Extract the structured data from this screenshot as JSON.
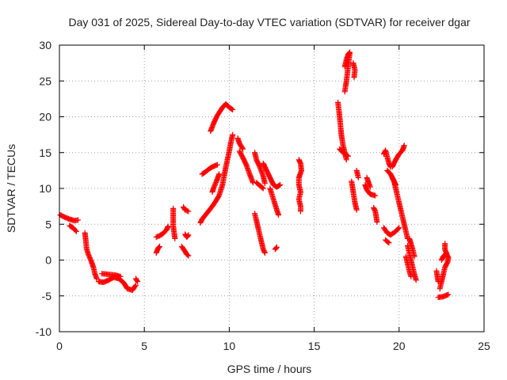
{
  "chart_data": {
    "type": "scatter",
    "title": "Day 031 of 2025, Sidereal Day-to-day VTEC variation (SDTVAR) for receiver dgar",
    "xlabel": "GPS time / hours",
    "ylabel": "SDTVAR / TECUs",
    "xlim": [
      0,
      25
    ],
    "ylim": [
      -10,
      30
    ],
    "xticks": [
      0,
      5,
      10,
      15,
      20,
      25
    ],
    "yticks": [
      -10,
      -5,
      0,
      5,
      10,
      15,
      20,
      25,
      30
    ],
    "grid": true,
    "marker": "+",
    "color": "#ff0000",
    "segments": [
      [
        [
          0.05,
          6.3
        ],
        [
          0.3,
          6.0
        ],
        [
          0.6,
          5.7
        ],
        [
          0.9,
          5.5
        ],
        [
          1.1,
          5.6
        ]
      ],
      [
        [
          0.6,
          4.8
        ],
        [
          0.8,
          4.5
        ],
        [
          1.0,
          4.0
        ]
      ],
      [
        [
          1.5,
          3.8
        ],
        [
          1.55,
          2.8
        ],
        [
          1.6,
          1.6
        ],
        [
          1.7,
          0.8
        ],
        [
          1.85,
          0.0
        ],
        [
          2.0,
          -1.0
        ],
        [
          2.1,
          -2.0
        ],
        [
          2.2,
          -2.6
        ]
      ],
      [
        [
          2.3,
          -3.0
        ],
        [
          2.6,
          -3.1
        ],
        [
          2.9,
          -2.8
        ],
        [
          3.2,
          -2.4
        ],
        [
          3.5,
          -2.6
        ],
        [
          3.8,
          -3.2
        ],
        [
          4.0,
          -4.0
        ],
        [
          4.3,
          -4.2
        ],
        [
          4.5,
          -3.5
        ]
      ],
      [
        [
          2.5,
          -1.9
        ],
        [
          2.9,
          -2.0
        ],
        [
          3.3,
          -2.1
        ],
        [
          3.6,
          -2.3
        ]
      ],
      [
        [
          4.5,
          -2.6
        ],
        [
          4.6,
          -3.0
        ]
      ],
      [
        [
          5.7,
          1.0
        ],
        [
          5.8,
          1.6
        ],
        [
          5.9,
          1.9
        ]
      ],
      [
        [
          5.7,
          3.2
        ],
        [
          5.9,
          3.4
        ],
        [
          6.1,
          3.7
        ],
        [
          6.3,
          4.2
        ],
        [
          6.4,
          4.7
        ]
      ],
      [
        [
          6.7,
          7.2
        ],
        [
          6.7,
          4.8
        ],
        [
          6.8,
          3.0
        ]
      ],
      [
        [
          7.3,
          7.4
        ],
        [
          7.4,
          7.0
        ],
        [
          7.6,
          6.8
        ]
      ],
      [
        [
          7.4,
          3.6
        ],
        [
          7.5,
          3.2
        ],
        [
          7.6,
          3.5
        ]
      ],
      [
        [
          7.2,
          1.9
        ],
        [
          7.4,
          1.2
        ],
        [
          7.5,
          0.8
        ],
        [
          7.6,
          0.6
        ]
      ],
      [
        [
          8.3,
          5.2
        ],
        [
          8.4,
          5.7
        ],
        [
          8.6,
          6.3
        ],
        [
          8.8,
          6.9
        ],
        [
          9.0,
          7.5
        ],
        [
          9.2,
          8.2
        ],
        [
          9.4,
          9.0
        ],
        [
          9.6,
          10.5
        ],
        [
          9.8,
          13.0
        ],
        [
          10.0,
          15.2
        ],
        [
          10.1,
          16.5
        ],
        [
          10.2,
          17.5
        ]
      ],
      [
        [
          8.4,
          12.0
        ],
        [
          8.6,
          12.3
        ],
        [
          8.8,
          12.7
        ],
        [
          9.0,
          13.0
        ],
        [
          9.3,
          13.3
        ]
      ],
      [
        [
          9.0,
          9.5
        ],
        [
          9.1,
          10.2
        ],
        [
          9.25,
          11.0
        ],
        [
          9.4,
          12.0
        ]
      ],
      [
        [
          8.9,
          18.0
        ],
        [
          9.1,
          19.2
        ],
        [
          9.3,
          20.2
        ],
        [
          9.6,
          21.3
        ],
        [
          9.8,
          21.8
        ],
        [
          10.0,
          21.3
        ],
        [
          10.2,
          21.0
        ]
      ],
      [
        [
          10.5,
          17.0
        ],
        [
          10.6,
          16.3
        ],
        [
          10.8,
          15.5
        ]
      ],
      [
        [
          10.6,
          15.2
        ],
        [
          10.8,
          14.3
        ],
        [
          11.0,
          13.3
        ],
        [
          11.2,
          12.0
        ],
        [
          11.4,
          10.8
        ]
      ],
      [
        [
          11.5,
          15.0
        ],
        [
          11.6,
          14.0
        ],
        [
          11.8,
          13.0
        ],
        [
          12.0,
          11.7
        ],
        [
          12.1,
          10.7
        ]
      ],
      [
        [
          11.6,
          10.8
        ],
        [
          11.8,
          10.4
        ],
        [
          12.0,
          10.0
        ]
      ],
      [
        [
          12.0,
          13.5
        ],
        [
          12.2,
          12.5
        ],
        [
          12.4,
          11.5
        ],
        [
          12.6,
          10.5
        ],
        [
          12.8,
          10.2
        ],
        [
          13.0,
          10.5
        ]
      ],
      [
        [
          12.4,
          10.0
        ],
        [
          12.6,
          8.5
        ],
        [
          12.8,
          7.0
        ],
        [
          12.9,
          6.3
        ]
      ],
      [
        [
          11.5,
          6.5
        ],
        [
          11.6,
          5.5
        ],
        [
          11.7,
          4.5
        ],
        [
          11.8,
          3.5
        ],
        [
          11.9,
          2.5
        ],
        [
          12.0,
          1.5
        ],
        [
          12.1,
          1.0
        ]
      ],
      [
        [
          12.7,
          1.5
        ],
        [
          12.8,
          1.8
        ]
      ],
      [
        [
          14.1,
          14.0
        ],
        [
          14.2,
          13.5
        ],
        [
          14.25,
          12.5
        ],
        [
          14.1,
          11.5
        ],
        [
          14.1,
          10.5
        ],
        [
          14.2,
          9.5
        ],
        [
          14.1,
          8.5
        ],
        [
          14.2,
          7.5
        ],
        [
          14.2,
          6.8
        ]
      ],
      [
        [
          16.4,
          22.0
        ],
        [
          16.5,
          20.0
        ],
        [
          16.6,
          17.5
        ],
        [
          16.7,
          16.0
        ],
        [
          16.8,
          15.0
        ],
        [
          16.9,
          14.0
        ]
      ],
      [
        [
          16.5,
          15.5
        ],
        [
          16.7,
          15.0
        ],
        [
          17.0,
          14.5
        ]
      ],
      [
        [
          16.8,
          27.0
        ],
        [
          16.9,
          28.0
        ],
        [
          17.0,
          28.7
        ],
        [
          17.1,
          29.0
        ],
        [
          16.9,
          25.0
        ],
        [
          16.8,
          23.5
        ]
      ],
      [
        [
          17.3,
          27.5
        ],
        [
          17.4,
          26.5
        ],
        [
          17.35,
          25.5
        ]
      ],
      [
        [
          17.5,
          12.5
        ],
        [
          17.6,
          11.5
        ]
      ],
      [
        [
          17.2,
          11.0
        ],
        [
          17.3,
          9.5
        ],
        [
          17.4,
          8.0
        ],
        [
          17.5,
          7.0
        ]
      ],
      [
        [
          18.0,
          10.5
        ],
        [
          18.1,
          9.8
        ],
        [
          18.3,
          9.2
        ],
        [
          18.6,
          9.0
        ]
      ],
      [
        [
          18.1,
          11.5
        ],
        [
          18.2,
          10.8
        ],
        [
          18.3,
          10.2
        ]
      ],
      [
        [
          18.5,
          7.3
        ],
        [
          18.6,
          6.8
        ],
        [
          18.7,
          5.3
        ]
      ],
      [
        [
          19.1,
          4.5
        ],
        [
          19.3,
          3.8
        ],
        [
          19.5,
          3.5
        ],
        [
          19.8,
          4.0
        ],
        [
          20.0,
          4.5
        ]
      ],
      [
        [
          19.2,
          2.8
        ],
        [
          19.4,
          2.4
        ]
      ],
      [
        [
          19.1,
          14.8
        ],
        [
          19.2,
          15.3
        ],
        [
          19.4,
          13.5
        ],
        [
          19.5,
          13.0
        ]
      ],
      [
        [
          19.3,
          12.5
        ],
        [
          19.5,
          12.0
        ],
        [
          19.7,
          11.0
        ],
        [
          19.8,
          10.0
        ],
        [
          19.9,
          9.0
        ],
        [
          20.0,
          8.0
        ],
        [
          20.1,
          7.0
        ],
        [
          20.2,
          6.0
        ],
        [
          20.3,
          5.0
        ],
        [
          20.4,
          4.0
        ],
        [
          20.5,
          3.0
        ]
      ],
      [
        [
          19.6,
          13.0
        ],
        [
          19.8,
          14.0
        ],
        [
          20.0,
          14.8
        ],
        [
          20.2,
          15.3
        ],
        [
          20.3,
          16.0
        ]
      ],
      [
        [
          19.6,
          11.5
        ],
        [
          19.7,
          11.0
        ],
        [
          19.8,
          10.5
        ]
      ],
      [
        [
          20.5,
          2.0
        ],
        [
          20.6,
          1.0
        ],
        [
          20.7,
          0.0
        ],
        [
          20.8,
          -1.0
        ],
        [
          20.9,
          -2.0
        ],
        [
          21.0,
          -2.8
        ]
      ],
      [
        [
          20.6,
          3.0
        ],
        [
          20.7,
          2.3
        ],
        [
          20.8,
          1.5
        ],
        [
          20.9,
          0.5
        ]
      ],
      [
        [
          20.4,
          0.5
        ],
        [
          20.5,
          -0.5
        ],
        [
          20.6,
          -1.5
        ],
        [
          20.7,
          -2.3
        ]
      ],
      [
        [
          22.2,
          -1.5
        ],
        [
          22.3,
          -3.0
        ]
      ],
      [
        [
          22.3,
          -5.2
        ],
        [
          22.6,
          -5.1
        ],
        [
          22.9,
          -4.8
        ]
      ],
      [
        [
          22.4,
          -4.0
        ],
        [
          22.5,
          -3.0
        ],
        [
          22.6,
          -2.0
        ],
        [
          22.7,
          -1.0
        ],
        [
          22.85,
          -0.3
        ],
        [
          22.9,
          0.3
        ],
        [
          22.8,
          0.8
        ],
        [
          22.7,
          1.5
        ],
        [
          22.7,
          2.3
        ]
      ],
      [
        [
          22.5,
          0.0
        ],
        [
          22.6,
          0.5
        ],
        [
          22.8,
          1.0
        ]
      ]
    ]
  }
}
